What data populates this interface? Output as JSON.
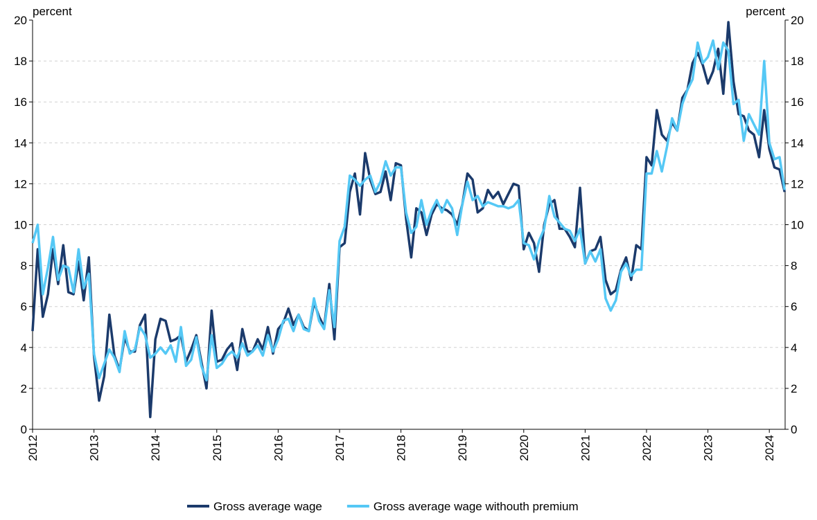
{
  "chart_data": {
    "type": "line",
    "y_label": "percent",
    "y2_label": "percent",
    "categories": [
      "2012",
      null,
      null,
      null,
      null,
      null,
      null,
      null,
      null,
      null,
      null,
      null,
      "2013",
      null,
      null,
      null,
      null,
      null,
      null,
      null,
      null,
      null,
      null,
      null,
      "2014",
      null,
      null,
      null,
      null,
      null,
      null,
      null,
      null,
      null,
      null,
      null,
      "2015",
      null,
      null,
      null,
      null,
      null,
      null,
      null,
      null,
      null,
      null,
      null,
      "2016",
      null,
      null,
      null,
      null,
      null,
      null,
      null,
      null,
      null,
      null,
      null,
      "2017",
      null,
      null,
      null,
      null,
      null,
      null,
      null,
      null,
      null,
      null,
      null,
      "2018",
      null,
      null,
      null,
      null,
      null,
      null,
      null,
      null,
      null,
      null,
      null,
      "2019",
      null,
      null,
      null,
      null,
      null,
      null,
      null,
      null,
      null,
      null,
      null,
      "2020",
      null,
      null,
      null,
      null,
      null,
      null,
      null,
      null,
      null,
      null,
      null,
      "2021",
      null,
      null,
      null,
      null,
      null,
      null,
      null,
      null,
      null,
      null,
      null,
      "2022",
      null,
      null,
      null,
      null,
      null,
      null,
      null,
      null,
      null,
      null,
      null,
      "2023",
      null,
      null,
      null,
      null,
      null,
      null,
      null,
      null,
      null,
      null,
      null,
      "2024",
      null,
      null,
      null
    ],
    "series": [
      {
        "name": "Gross average wage",
        "color": "#1b3a6b",
        "values": [
          4.8,
          8.8,
          5.5,
          6.6,
          8.8,
          7.1,
          9.0,
          6.7,
          6.6,
          8.2,
          6.3,
          8.4,
          3.6,
          1.4,
          2.6,
          5.6,
          3.6,
          2.9,
          4.5,
          3.8,
          3.8,
          5.1,
          5.6,
          0.6,
          4.4,
          5.4,
          5.3,
          4.3,
          4.4,
          4.6,
          3.3,
          3.9,
          4.6,
          3.3,
          2.0,
          5.8,
          3.3,
          3.4,
          3.9,
          4.2,
          2.9,
          4.9,
          3.8,
          3.8,
          4.4,
          3.9,
          5.0,
          3.7,
          4.9,
          5.2,
          5.9,
          5.1,
          5.6,
          5.0,
          4.8,
          6.2,
          5.5,
          5.0,
          7.1,
          4.4,
          8.9,
          9.1,
          11.6,
          12.5,
          10.5,
          13.5,
          12.2,
          11.5,
          11.6,
          12.6,
          11.2,
          13.0,
          12.9,
          10.3,
          8.4,
          10.8,
          10.6,
          9.5,
          10.5,
          11.0,
          10.8,
          10.7,
          10.5,
          10.0,
          11.0,
          12.5,
          12.2,
          10.6,
          10.8,
          11.7,
          11.3,
          11.6,
          11.0,
          11.5,
          12.0,
          11.9,
          8.8,
          9.6,
          9.1,
          7.7,
          10.0,
          11.0,
          11.2,
          9.8,
          9.8,
          9.4,
          8.9,
          11.8,
          8.1,
          8.7,
          8.8,
          9.4,
          7.3,
          6.6,
          6.8,
          7.8,
          8.4,
          7.3,
          9.0,
          8.8,
          13.3,
          12.9,
          15.6,
          14.4,
          14.1,
          15.0,
          14.6,
          16.2,
          16.6,
          17.9,
          18.4,
          17.8,
          16.9,
          17.5,
          18.6,
          16.4,
          19.9,
          17.0,
          15.4,
          15.3,
          14.6,
          14.4,
          13.3,
          15.6,
          13.7,
          12.8,
          12.7,
          11.6
        ]
      },
      {
        "name": "Gross average wage withouth premium",
        "color": "#55c8f5",
        "values": [
          9.1,
          10.0,
          6.6,
          7.9,
          9.4,
          7.3,
          8.0,
          7.9,
          6.7,
          8.8,
          6.9,
          7.6,
          3.7,
          2.5,
          3.2,
          3.9,
          3.5,
          2.8,
          4.8,
          3.7,
          3.9,
          5.0,
          4.6,
          3.5,
          3.7,
          4.0,
          3.7,
          4.1,
          3.3,
          5.0,
          3.1,
          3.4,
          4.5,
          3.1,
          2.4,
          4.6,
          3.0,
          3.2,
          3.6,
          3.8,
          3.5,
          4.2,
          3.6,
          3.8,
          4.1,
          3.6,
          4.6,
          3.8,
          4.4,
          5.3,
          5.4,
          4.8,
          5.6,
          4.9,
          4.8,
          6.4,
          5.3,
          4.9,
          6.8,
          5.0,
          9.2,
          9.9,
          12.4,
          12.2,
          11.9,
          12.2,
          12.4,
          11.6,
          12.1,
          13.1,
          12.4,
          12.8,
          12.8,
          10.6,
          9.6,
          9.9,
          11.2,
          10.0,
          10.7,
          11.2,
          10.6,
          11.2,
          10.8,
          9.5,
          11.0,
          12.1,
          11.2,
          11.4,
          10.9,
          11.1,
          11.0,
          10.9,
          10.9,
          10.8,
          10.9,
          11.2,
          9.1,
          9.0,
          8.3,
          9.2,
          9.8,
          11.4,
          10.4,
          10.1,
          9.8,
          9.7,
          9.2,
          9.8,
          8.1,
          8.7,
          8.2,
          8.8,
          6.4,
          5.8,
          6.3,
          7.7,
          8.1,
          7.5,
          7.8,
          7.8,
          12.5,
          12.5,
          13.6,
          12.6,
          13.8,
          15.2,
          14.6,
          15.9,
          16.6,
          17.1,
          18.9,
          17.9,
          18.2,
          19.0,
          17.6,
          18.9,
          18.5,
          15.9,
          16.1,
          14.1,
          15.4,
          14.9,
          14.4,
          18.0,
          14.0,
          13.2,
          13.3,
          11.7
        ]
      }
    ],
    "ylim": [
      0,
      20
    ],
    "yticks": [
      0,
      2,
      4,
      6,
      8,
      10,
      12,
      14,
      16,
      18,
      20
    ],
    "y2lim": [
      0,
      20
    ],
    "y2ticks": [
      0,
      2,
      4,
      6,
      8,
      10,
      12,
      14,
      16,
      18,
      20
    ],
    "grid": true,
    "legend": "bottom"
  }
}
